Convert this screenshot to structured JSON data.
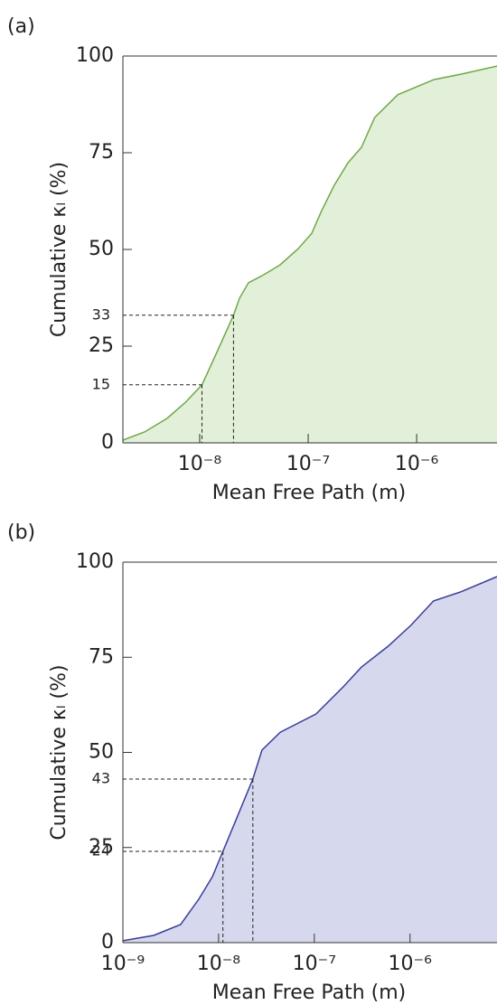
{
  "chart_data": [
    {
      "type": "area",
      "panel_label": "(a)",
      "xlabel": "Mean Free Path (m)",
      "ylabel": "Cumulative κₗ (%)",
      "xlog": true,
      "xlim": [
        1.96e-09,
        5.5e-06
      ],
      "ylim": [
        0,
        100
      ],
      "xticks": [
        {
          "value": 1e-08,
          "label": "10⁻⁸"
        },
        {
          "value": 1e-07,
          "label": "10⁻⁷"
        },
        {
          "value": 1e-06,
          "label": "10⁻⁶"
        }
      ],
      "yticks": [
        0,
        25,
        50,
        75,
        100
      ],
      "color": "#6fa84a",
      "fill": "#e3f0d9",
      "x": [
        1.96e-09,
        3.1e-09,
        5e-09,
        7.4e-09,
        1.05e-08,
        1.44e-08,
        2.05e-08,
        2.33e-08,
        2.82e-08,
        3.76e-08,
        5.5e-08,
        8.1e-08,
        1.08e-07,
        1.31e-07,
        1.74e-07,
        2.33e-07,
        3.1e-07,
        4.1e-07,
        6.7e-07,
        1.44e-06,
        2.56e-06,
        5.5e-06
      ],
      "values": [
        0.7,
        2.8,
        6.3,
        10.5,
        15,
        23.4,
        33,
        37.4,
        41.4,
        43.2,
        46,
        50.2,
        54.2,
        59.6,
        66.6,
        72.4,
        76.4,
        84.1,
        90,
        93.9,
        95.3,
        97.4
      ],
      "annotations": [
        {
          "x": 1.05e-08,
          "y": 15
        },
        {
          "x": 2.05e-08,
          "y": 33
        }
      ]
    },
    {
      "type": "area",
      "panel_label": "(b)",
      "xlabel": "Mean Free Path (m)",
      "ylabel": "Cumulative κₗ (%)",
      "xlog": true,
      "xlim": [
        1e-09,
        8.1e-06
      ],
      "ylim": [
        0,
        100
      ],
      "xticks": [
        {
          "value": 1e-09,
          "label": "10⁻⁹"
        },
        {
          "value": 1e-08,
          "label": "10⁻⁸"
        },
        {
          "value": 1e-07,
          "label": "10⁻⁷"
        },
        {
          "value": 1e-06,
          "label": "10⁻⁶"
        }
      ],
      "yticks": [
        0,
        25,
        50,
        75,
        100
      ],
      "color": "#3a3c9a",
      "fill": "#d6d8ee",
      "x": [
        1e-09,
        2.1e-09,
        4e-09,
        6.2e-09,
        8.6e-09,
        1.11e-08,
        1.55e-08,
        2.28e-08,
        2.84e-08,
        4.4e-08,
        1.04e-07,
        2e-07,
        3.1e-07,
        5.9e-07,
        1.02e-06,
        1.76e-06,
        3.4e-06,
        8.1e-06
      ],
      "values": [
        0.5,
        1.9,
        4.75,
        11.4,
        17.3,
        24,
        32.8,
        43,
        50.6,
        55.3,
        60.1,
        67.2,
        72.4,
        77.9,
        83.4,
        89.8,
        92.2,
        96.2
      ],
      "annotations": [
        {
          "x": 1.11e-08,
          "y": 24
        },
        {
          "x": 2.28e-08,
          "y": 43
        }
      ]
    }
  ]
}
